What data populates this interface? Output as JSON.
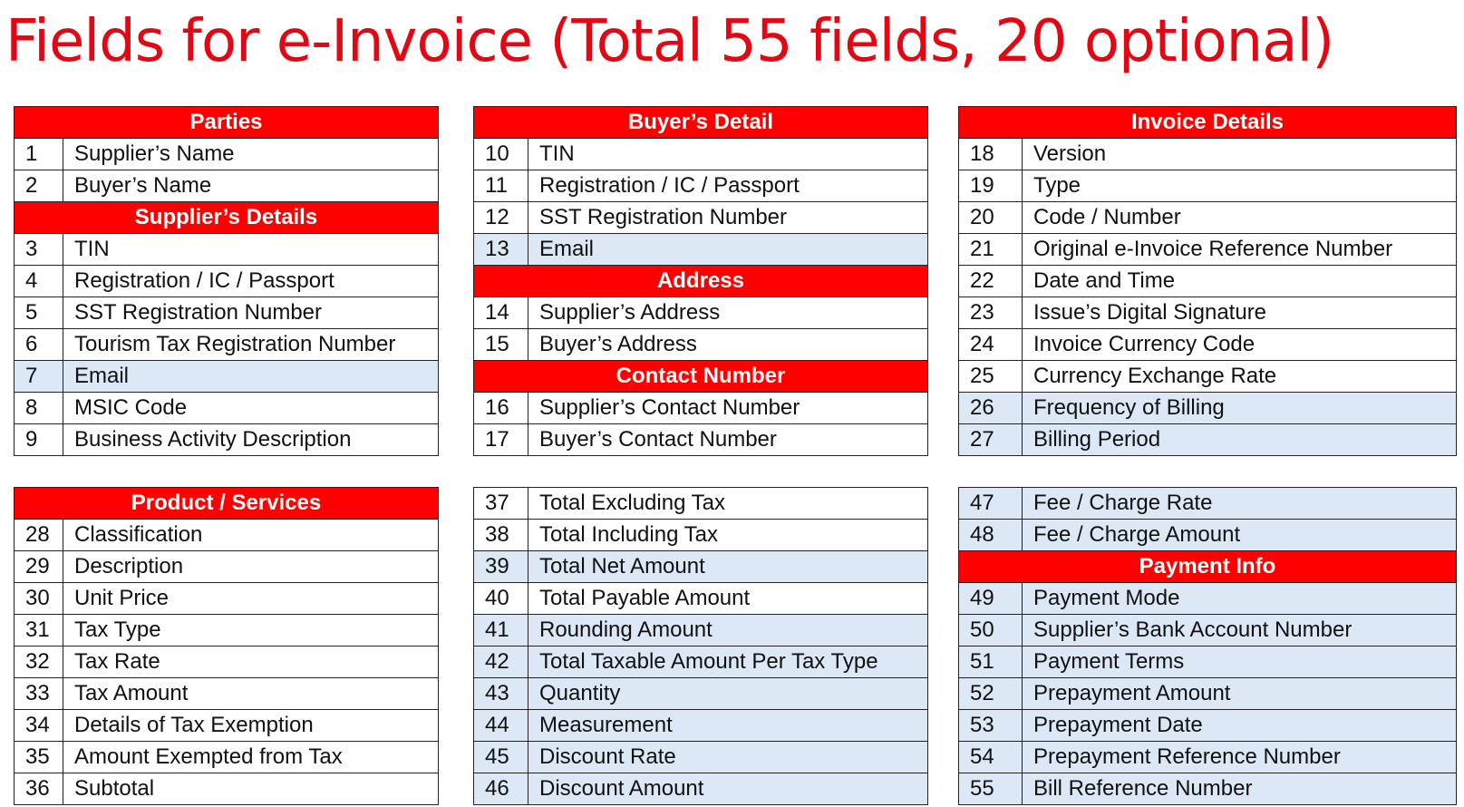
{
  "title": "Fields for e-Invoice (Total 55 fields, 20 optional)",
  "colors": {
    "title": "#e30613",
    "header_bg": "#ff0000",
    "optional_bg": "#dce8f5"
  },
  "tables": {
    "t1": {
      "rows": [
        {
          "header": "Parties"
        },
        {
          "num": "1",
          "label": "Supplier’s Name"
        },
        {
          "num": "2",
          "label": "Buyer’s Name"
        },
        {
          "header": "Supplier’s Details"
        },
        {
          "num": "3",
          "label": "TIN"
        },
        {
          "num": "4",
          "label": "Registration / IC / Passport"
        },
        {
          "num": "5",
          "label": "SST Registration Number"
        },
        {
          "num": "6",
          "label": "Tourism Tax Registration Number"
        },
        {
          "num": "7",
          "label": "Email",
          "optional": true
        },
        {
          "num": "8",
          "label": "MSIC Code"
        },
        {
          "num": "9",
          "label": "Business Activity Description"
        }
      ]
    },
    "t2": {
      "rows": [
        {
          "header": "Buyer’s Detail"
        },
        {
          "num": "10",
          "label": "TIN"
        },
        {
          "num": "11",
          "label": "Registration / IC / Passport"
        },
        {
          "num": "12",
          "label": "SST Registration Number"
        },
        {
          "num": "13",
          "label": "Email",
          "optional": true
        },
        {
          "header": "Address"
        },
        {
          "num": "14",
          "label": "Supplier’s Address"
        },
        {
          "num": "15",
          "label": "Buyer’s Address"
        },
        {
          "header": "Contact Number"
        },
        {
          "num": "16",
          "label": "Supplier’s Contact Number"
        },
        {
          "num": "17",
          "label": "Buyer’s Contact Number"
        }
      ]
    },
    "t3": {
      "rows": [
        {
          "header": "Invoice Details"
        },
        {
          "num": "18",
          "label": "Version"
        },
        {
          "num": "19",
          "label": "Type"
        },
        {
          "num": "20",
          "label": "Code / Number"
        },
        {
          "num": "21",
          "label": "Original e-Invoice Reference Number"
        },
        {
          "num": "22",
          "label": "Date and Time"
        },
        {
          "num": "23",
          "label": "Issue’s Digital Signature"
        },
        {
          "num": "24",
          "label": "Invoice Currency Code"
        },
        {
          "num": "25",
          "label": "Currency Exchange Rate"
        },
        {
          "num": "26",
          "label": "Frequency of Billing",
          "optional": true
        },
        {
          "num": "27",
          "label": "Billing Period",
          "optional": true
        }
      ]
    },
    "t4": {
      "rows": [
        {
          "header": "Product / Services"
        },
        {
          "num": "28",
          "label": "Classification"
        },
        {
          "num": "29",
          "label": "Description"
        },
        {
          "num": "30",
          "label": "Unit Price"
        },
        {
          "num": "31",
          "label": "Tax Type"
        },
        {
          "num": "32",
          "label": "Tax Rate"
        },
        {
          "num": "33",
          "label": "Tax Amount"
        },
        {
          "num": "34",
          "label": "Details of Tax Exemption"
        },
        {
          "num": "35",
          "label": "Amount Exempted from Tax"
        },
        {
          "num": "36",
          "label": "Subtotal"
        }
      ]
    },
    "t5": {
      "rows": [
        {
          "num": "37",
          "label": "Total Excluding Tax"
        },
        {
          "num": "38",
          "label": "Total Including Tax"
        },
        {
          "num": "39",
          "label": "Total Net Amount",
          "optional": true
        },
        {
          "num": "40",
          "label": "Total Payable Amount"
        },
        {
          "num": "41",
          "label": "Rounding Amount",
          "optional": true
        },
        {
          "num": "42",
          "label": "Total Taxable Amount Per Tax Type",
          "optional": true
        },
        {
          "num": "43",
          "label": "Quantity",
          "optional": true
        },
        {
          "num": "44",
          "label": "Measurement",
          "optional": true
        },
        {
          "num": "45",
          "label": "Discount Rate",
          "optional": true
        },
        {
          "num": "46",
          "label": "Discount Amount",
          "optional": true
        }
      ]
    },
    "t6": {
      "rows": [
        {
          "num": "47",
          "label": "Fee / Charge Rate",
          "optional": true
        },
        {
          "num": "48",
          "label": "Fee / Charge Amount",
          "optional": true
        },
        {
          "header": "Payment Info"
        },
        {
          "num": "49",
          "label": "Payment Mode",
          "optional": true
        },
        {
          "num": "50",
          "label": "Supplier’s Bank Account Number",
          "optional": true
        },
        {
          "num": "51",
          "label": "Payment Terms",
          "optional": true
        },
        {
          "num": "52",
          "label": "Prepayment Amount",
          "optional": true
        },
        {
          "num": "53",
          "label": "Prepayment Date",
          "optional": true
        },
        {
          "num": "54",
          "label": "Prepayment Reference Number",
          "optional": true
        },
        {
          "num": "55",
          "label": "Bill Reference Number",
          "optional": true
        }
      ]
    }
  }
}
